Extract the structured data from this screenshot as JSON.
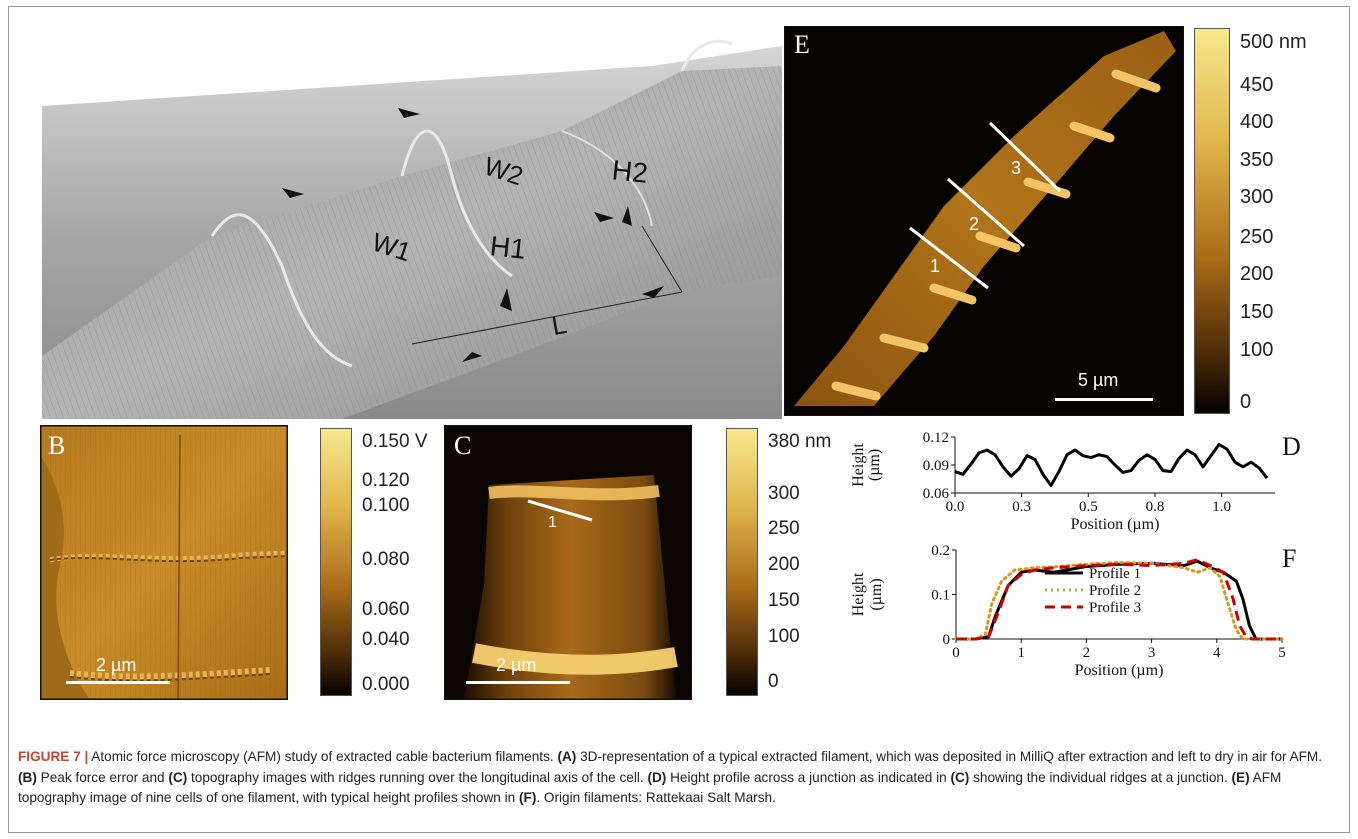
{
  "panels": {
    "A": {
      "letter": "A",
      "labels": {
        "w1": "W1",
        "w2": "W2",
        "h1": "H1",
        "h2": "H2",
        "l": "L"
      }
    },
    "B": {
      "letter": "B",
      "scale_bar": "2 µm",
      "colorbar_ticks": [
        "0.150 V",
        "0.120",
        "0.100",
        "0.080",
        "0.060",
        "0.040",
        "0.000"
      ]
    },
    "C": {
      "letter": "C",
      "scale_bar": "2 µm",
      "profile_label": "1",
      "colorbar_ticks": [
        "380 nm",
        "300",
        "250",
        "200",
        "150",
        "100",
        "0"
      ]
    },
    "D": {
      "letter": "D"
    },
    "E": {
      "letter": "E",
      "scale_bar": "5 µm",
      "profile_labels": [
        "1",
        "2",
        "3"
      ],
      "colorbar_ticks": [
        "500 nm",
        "450",
        "400",
        "350",
        "300",
        "250",
        "200",
        "150",
        "100",
        "0"
      ]
    },
    "F": {
      "letter": "F"
    }
  },
  "chart_data": [
    {
      "panel": "D",
      "type": "line",
      "xlabel": "Position (µm)",
      "ylabel": "Height (µm)",
      "xlim": [
        0.0,
        1.2
      ],
      "ylim": [
        0.06,
        0.12
      ],
      "x_ticks": [
        "0.0",
        "0.3",
        "0.5",
        "0.8",
        "1.0"
      ],
      "x_tick_values": [
        0.0,
        0.25,
        0.5,
        0.75,
        1.0
      ],
      "y_ticks": [
        "0.12",
        "0.09",
        "0.06"
      ],
      "y_tick_values": [
        0.12,
        0.09,
        0.06
      ],
      "series": [
        {
          "color": "#000000",
          "x": [
            0.0,
            0.03,
            0.06,
            0.09,
            0.12,
            0.15,
            0.18,
            0.21,
            0.24,
            0.27,
            0.3,
            0.33,
            0.36,
            0.39,
            0.42,
            0.45,
            0.48,
            0.51,
            0.54,
            0.57,
            0.6,
            0.63,
            0.66,
            0.69,
            0.72,
            0.75,
            0.78,
            0.81,
            0.84,
            0.87,
            0.9,
            0.93,
            0.96,
            0.99,
            1.02,
            1.05,
            1.08,
            1.11,
            1.14,
            1.17
          ],
          "y": [
            0.083,
            0.08,
            0.091,
            0.103,
            0.106,
            0.101,
            0.088,
            0.078,
            0.086,
            0.1,
            0.096,
            0.08,
            0.068,
            0.083,
            0.101,
            0.106,
            0.1,
            0.098,
            0.101,
            0.099,
            0.09,
            0.082,
            0.084,
            0.095,
            0.101,
            0.096,
            0.084,
            0.083,
            0.097,
            0.106,
            0.101,
            0.088,
            0.1,
            0.112,
            0.107,
            0.093,
            0.088,
            0.093,
            0.087,
            0.076
          ]
        }
      ]
    },
    {
      "panel": "F",
      "type": "line",
      "xlabel": "Position (µm)",
      "ylabel": "Height (µm)",
      "xlim": [
        0,
        5
      ],
      "ylim": [
        0,
        0.2
      ],
      "x_ticks": [
        "0",
        "1",
        "2",
        "3",
        "4",
        "5"
      ],
      "y_ticks": [
        "0.2",
        "0.1",
        "0"
      ],
      "legend_position": "inside-center",
      "series": [
        {
          "name": "Profile 1",
          "color": "#000000",
          "dash": "solid",
          "x": [
            0.0,
            0.3,
            0.5,
            0.6,
            0.8,
            1.0,
            1.2,
            1.5,
            2.0,
            2.5,
            3.0,
            3.5,
            3.7,
            3.9,
            4.1,
            4.3,
            4.4,
            4.5,
            4.6,
            4.7,
            5.0
          ],
          "y": [
            0,
            0,
            0.005,
            0.05,
            0.12,
            0.15,
            0.155,
            0.15,
            0.163,
            0.168,
            0.17,
            0.165,
            0.175,
            0.16,
            0.15,
            0.13,
            0.09,
            0.03,
            0,
            0,
            0
          ]
        },
        {
          "name": "Profile 2",
          "color": "#d79a1e",
          "dash": "dotted",
          "x": [
            0.0,
            0.3,
            0.45,
            0.55,
            0.7,
            0.9,
            1.2,
            1.5,
            2.0,
            2.5,
            3.0,
            3.5,
            3.7,
            3.9,
            4.05,
            4.15,
            4.3,
            4.4,
            5.0
          ],
          "y": [
            0,
            0,
            0.01,
            0.08,
            0.13,
            0.155,
            0.16,
            0.162,
            0.168,
            0.172,
            0.17,
            0.16,
            0.15,
            0.16,
            0.14,
            0.09,
            0.02,
            0,
            0
          ]
        },
        {
          "name": "Profile 3",
          "color": "#cc0000",
          "dash": "dashed",
          "x": [
            0.0,
            0.3,
            0.5,
            0.65,
            0.8,
            1.0,
            1.2,
            1.5,
            2.0,
            2.5,
            3.0,
            3.5,
            3.7,
            3.9,
            4.1,
            4.25,
            4.35,
            4.45,
            4.55,
            5.0
          ],
          "y": [
            0,
            0,
            0.005,
            0.06,
            0.12,
            0.145,
            0.155,
            0.16,
            0.165,
            0.168,
            0.165,
            0.17,
            0.178,
            0.165,
            0.15,
            0.09,
            0.03,
            0.005,
            0,
            0
          ]
        }
      ]
    }
  ],
  "caption": {
    "figure": "FIGURE 7 |",
    "parts": [
      {
        "t": " Atomic force microscopy (AFM) study of extracted cable bacterium filaments. ",
        "b": false
      },
      {
        "t": "(A)",
        "b": true
      },
      {
        "t": " 3D-representation of a typical extracted filament, which was deposited in MilliQ after extraction and left to dry in air for AFM. ",
        "b": false
      },
      {
        "t": "(B)",
        "b": true
      },
      {
        "t": " Peak force error and ",
        "b": false
      },
      {
        "t": "(C)",
        "b": true
      },
      {
        "t": " topography images with ridges running over the longitudinal axis of the cell. ",
        "b": false
      },
      {
        "t": "(D)",
        "b": true
      },
      {
        "t": " Height profile across a junction as indicated in ",
        "b": false
      },
      {
        "t": "(C)",
        "b": true
      },
      {
        "t": " showing the individual ridges at a junction. ",
        "b": false
      },
      {
        "t": "(E)",
        "b": true
      },
      {
        "t": " AFM topography image of nine cells of one filament, with typical height profiles shown in ",
        "b": false
      },
      {
        "t": "(F)",
        "b": true
      },
      {
        "t": ". Origin filaments: Rattekaai Salt Marsh.",
        "b": false
      }
    ]
  }
}
